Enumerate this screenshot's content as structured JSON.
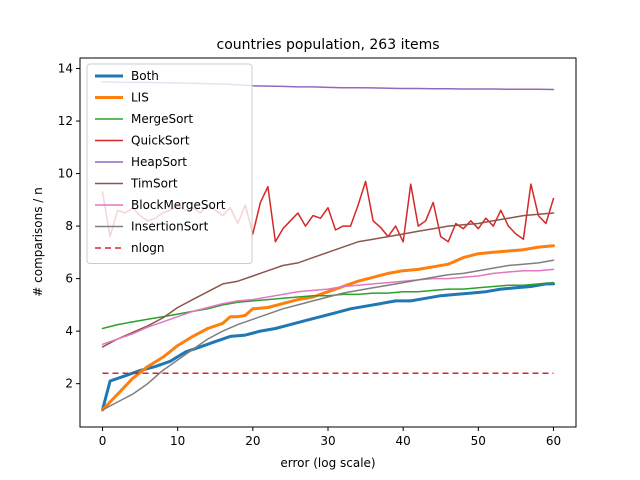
{
  "chart_data": {
    "type": "line",
    "title": "countries population, 263 items",
    "xlabel": "error (log scale)",
    "ylabel": "# comparisons / n",
    "xlim": [
      -3,
      63
    ],
    "ylim": [
      0.35,
      14.4
    ],
    "xticks": [
      0,
      10,
      20,
      30,
      40,
      50,
      60
    ],
    "yticks": [
      2,
      4,
      6,
      8,
      10,
      12,
      14
    ],
    "grid": false,
    "legend_position": "upper-left",
    "series": [
      {
        "name": "Both",
        "color": "#1f77b4",
        "width": 3,
        "x": [
          0,
          1,
          3,
          5,
          7,
          9,
          11,
          13,
          15,
          17,
          19,
          21,
          23,
          25,
          27,
          29,
          31,
          33,
          35,
          37,
          39,
          41,
          43,
          45,
          47,
          49,
          51,
          53,
          55,
          57,
          59,
          60
        ],
        "y": [
          1.0,
          2.1,
          2.3,
          2.5,
          2.65,
          2.85,
          3.2,
          3.4,
          3.6,
          3.8,
          3.85,
          4.0,
          4.1,
          4.25,
          4.4,
          4.55,
          4.7,
          4.85,
          4.95,
          5.05,
          5.15,
          5.15,
          5.25,
          5.35,
          5.4,
          5.45,
          5.5,
          5.6,
          5.65,
          5.7,
          5.8,
          5.8
        ]
      },
      {
        "name": "LIS",
        "color": "#ff7f0e",
        "width": 3,
        "x": [
          0,
          2,
          4,
          6,
          8,
          10,
          12,
          14,
          16,
          17,
          18,
          19,
          20,
          22,
          24,
          26,
          28,
          30,
          32,
          34,
          36,
          38,
          40,
          42,
          44,
          46,
          48,
          50,
          52,
          54,
          56,
          58,
          60
        ],
        "y": [
          1.0,
          1.6,
          2.2,
          2.65,
          3.0,
          3.45,
          3.8,
          4.1,
          4.3,
          4.55,
          4.55,
          4.6,
          4.85,
          4.9,
          5.05,
          5.2,
          5.3,
          5.5,
          5.7,
          5.9,
          6.05,
          6.2,
          6.3,
          6.35,
          6.45,
          6.55,
          6.8,
          6.95,
          7.0,
          7.05,
          7.1,
          7.2,
          7.25
        ]
      },
      {
        "name": "MergeSort",
        "color": "#2ca02c",
        "width": 1.5,
        "x": [
          0,
          2,
          4,
          6,
          8,
          10,
          12,
          14,
          16,
          18,
          20,
          22,
          24,
          26,
          28,
          30,
          32,
          34,
          36,
          38,
          40,
          42,
          44,
          46,
          48,
          50,
          52,
          54,
          56,
          58,
          60
        ],
        "y": [
          4.1,
          4.25,
          4.35,
          4.45,
          4.55,
          4.65,
          4.75,
          4.85,
          5.0,
          5.1,
          5.15,
          5.2,
          5.25,
          5.3,
          5.35,
          5.35,
          5.4,
          5.4,
          5.45,
          5.45,
          5.5,
          5.5,
          5.55,
          5.6,
          5.6,
          5.65,
          5.7,
          5.75,
          5.75,
          5.8,
          5.85
        ]
      },
      {
        "name": "QuickSort",
        "color": "#d62728",
        "width": 1.5,
        "x": [
          0,
          1,
          2,
          3,
          4,
          5,
          6,
          7,
          8,
          9,
          10,
          11,
          12,
          13,
          14,
          15,
          16,
          17,
          18,
          19,
          20,
          21,
          22,
          23,
          24,
          25,
          26,
          27,
          28,
          29,
          30,
          31,
          32,
          33,
          34,
          35,
          36,
          37,
          38,
          39,
          40,
          41,
          42,
          43,
          44,
          45,
          46,
          47,
          48,
          49,
          50,
          51,
          52,
          53,
          54,
          55,
          56,
          57,
          58,
          59,
          60
        ],
        "y": [
          9.3,
          7.6,
          8.6,
          8.5,
          8.7,
          8.4,
          8.2,
          8.3,
          8.5,
          8.6,
          8.8,
          8.6,
          8.7,
          8.5,
          8.8,
          8.6,
          8.4,
          8.7,
          8.1,
          8.8,
          7.7,
          8.9,
          9.5,
          7.4,
          7.9,
          8.2,
          8.5,
          8.0,
          8.4,
          8.3,
          8.7,
          7.85,
          8.0,
          8.0,
          8.8,
          9.7,
          8.2,
          7.95,
          7.6,
          8.0,
          7.4,
          9.6,
          8.0,
          8.2,
          8.9,
          7.6,
          7.4,
          8.1,
          7.9,
          8.2,
          7.9,
          8.3,
          8.0,
          8.6,
          8.0,
          7.7,
          7.5,
          9.6,
          8.4,
          8.1,
          9.05
        ]
      },
      {
        "name": "HeapSort",
        "color": "#9467bd",
        "width": 1.5,
        "x": [
          0,
          2,
          4,
          6,
          8,
          10,
          12,
          14,
          16,
          18,
          20,
          22,
          24,
          26,
          28,
          30,
          32,
          34,
          36,
          38,
          40,
          42,
          44,
          46,
          48,
          50,
          52,
          54,
          56,
          58,
          60
        ],
        "y": [
          13.5,
          13.48,
          13.47,
          13.47,
          13.46,
          13.45,
          13.44,
          13.42,
          13.41,
          13.38,
          13.34,
          13.33,
          13.32,
          13.3,
          13.3,
          13.28,
          13.27,
          13.27,
          13.26,
          13.25,
          13.24,
          13.24,
          13.23,
          13.23,
          13.22,
          13.22,
          13.22,
          13.21,
          13.21,
          13.21,
          13.2
        ]
      },
      {
        "name": "TimSort",
        "color": "#8c564b",
        "width": 1.5,
        "x": [
          0,
          2,
          4,
          6,
          8,
          10,
          12,
          14,
          16,
          18,
          20,
          22,
          24,
          26,
          28,
          30,
          32,
          34,
          36,
          38,
          40,
          42,
          44,
          46,
          48,
          50,
          52,
          54,
          56,
          58,
          60
        ],
        "y": [
          3.4,
          3.7,
          3.95,
          4.2,
          4.5,
          4.9,
          5.2,
          5.5,
          5.8,
          5.9,
          6.1,
          6.3,
          6.5,
          6.6,
          6.8,
          7.0,
          7.2,
          7.4,
          7.5,
          7.6,
          7.7,
          7.8,
          7.9,
          8.0,
          8.05,
          8.1,
          8.2,
          8.3,
          8.4,
          8.45,
          8.5
        ]
      },
      {
        "name": "BlockMergeSort",
        "color": "#e377c2",
        "width": 1.5,
        "x": [
          0,
          2,
          4,
          6,
          8,
          10,
          12,
          14,
          16,
          18,
          20,
          22,
          24,
          26,
          28,
          30,
          32,
          34,
          36,
          38,
          40,
          42,
          44,
          46,
          48,
          50,
          52,
          54,
          56,
          58,
          60
        ],
        "y": [
          3.5,
          3.7,
          3.9,
          4.15,
          4.35,
          4.55,
          4.75,
          4.9,
          5.05,
          5.15,
          5.2,
          5.3,
          5.4,
          5.5,
          5.55,
          5.6,
          5.7,
          5.75,
          5.8,
          5.85,
          5.9,
          5.95,
          6.0,
          6.0,
          6.05,
          6.1,
          6.2,
          6.25,
          6.3,
          6.3,
          6.35
        ]
      },
      {
        "name": "InsertionSort",
        "color": "#7f7f7f",
        "width": 1.5,
        "x": [
          0,
          2,
          4,
          6,
          8,
          10,
          12,
          14,
          16,
          18,
          20,
          22,
          24,
          26,
          28,
          30,
          32,
          34,
          36,
          38,
          40,
          42,
          44,
          46,
          48,
          50,
          52,
          54,
          56,
          58,
          60
        ],
        "y": [
          1.0,
          1.3,
          1.6,
          2.0,
          2.5,
          2.9,
          3.3,
          3.7,
          4.0,
          4.25,
          4.45,
          4.65,
          4.85,
          5.0,
          5.15,
          5.3,
          5.45,
          5.55,
          5.65,
          5.75,
          5.85,
          5.95,
          6.05,
          6.15,
          6.2,
          6.3,
          6.4,
          6.5,
          6.55,
          6.6,
          6.7
        ]
      },
      {
        "name": "nlogn",
        "color": "#d62728",
        "width": 1.5,
        "dash": "6,4",
        "x": [
          0,
          60
        ],
        "y": [
          2.4,
          2.4
        ]
      }
    ]
  }
}
